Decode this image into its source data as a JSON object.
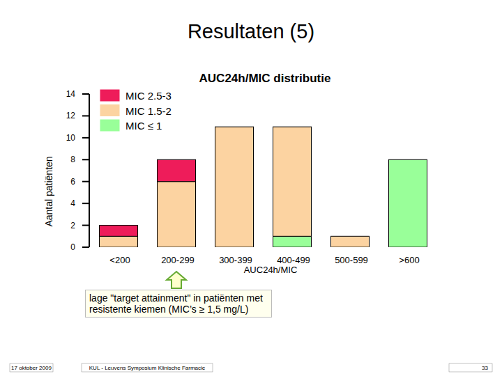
{
  "chart_data": {
    "type": "bar",
    "stacked": true,
    "title": "Resultaten (5)",
    "subtitle": "AUC24h/MIC distributie",
    "x_label": "AUC24h/MIC",
    "y_label": "Aantal patiënten",
    "categories": [
      "<200",
      "200-299",
      "300-399",
      "400-499",
      "500-599",
      ">600"
    ],
    "series": [
      {
        "name": "MIC ≤ 1",
        "color": "#99ff99",
        "values": [
          0,
          0,
          0,
          1,
          0,
          8
        ]
      },
      {
        "name": "MIC 1.5-2",
        "color": "#fcd3a1",
        "values": [
          1,
          6,
          11,
          10,
          1,
          0
        ]
      },
      {
        "name": "MIC 2.5-3",
        "color": "#ee1c5a",
        "values": [
          1,
          2,
          0,
          0,
          0,
          0
        ]
      }
    ],
    "ylim": [
      0,
      14
    ],
    "yticks": [
      0,
      2,
      4,
      6,
      8,
      10,
      12,
      14
    ],
    "grid": false,
    "legend": "top-left",
    "data_labels": false,
    "annotations": [
      {
        "text": "lage \"target attainment\" in patiënten met resistente kiemen (MIC’s ≥ 1,5 mg/L)",
        "category": 1
      }
    ],
    "footer": {
      "date": "17 oktober 2009",
      "event": "KUL - Leuvens Symposium Klinische Farmacie",
      "page": "33"
    }
  }
}
